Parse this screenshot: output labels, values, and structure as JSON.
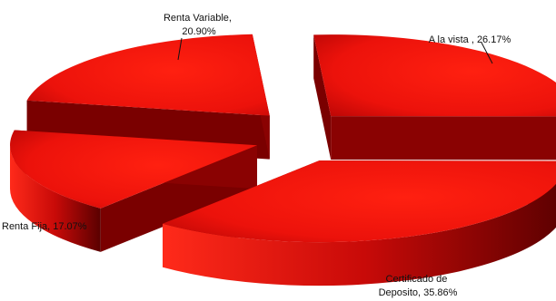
{
  "chart_data": {
    "type": "pie",
    "style": "3d-exploded",
    "color": "#e8140e",
    "slices": [
      {
        "label": "A la vista",
        "value": 26.17,
        "text_lines": [
          "A la vista , 26.17%"
        ]
      },
      {
        "label": "Certificado de Deposito",
        "value": 35.86,
        "text_lines": [
          "Certificado de",
          "Deposito, 35.86%"
        ]
      },
      {
        "label": "Renta Fija",
        "value": 17.07,
        "text_lines": [
          "Renta Fija, 17.07%"
        ]
      },
      {
        "label": "Renta Variable",
        "value": 20.9,
        "text_lines": [
          "Renta Variable,",
          "20.90%"
        ]
      }
    ]
  }
}
